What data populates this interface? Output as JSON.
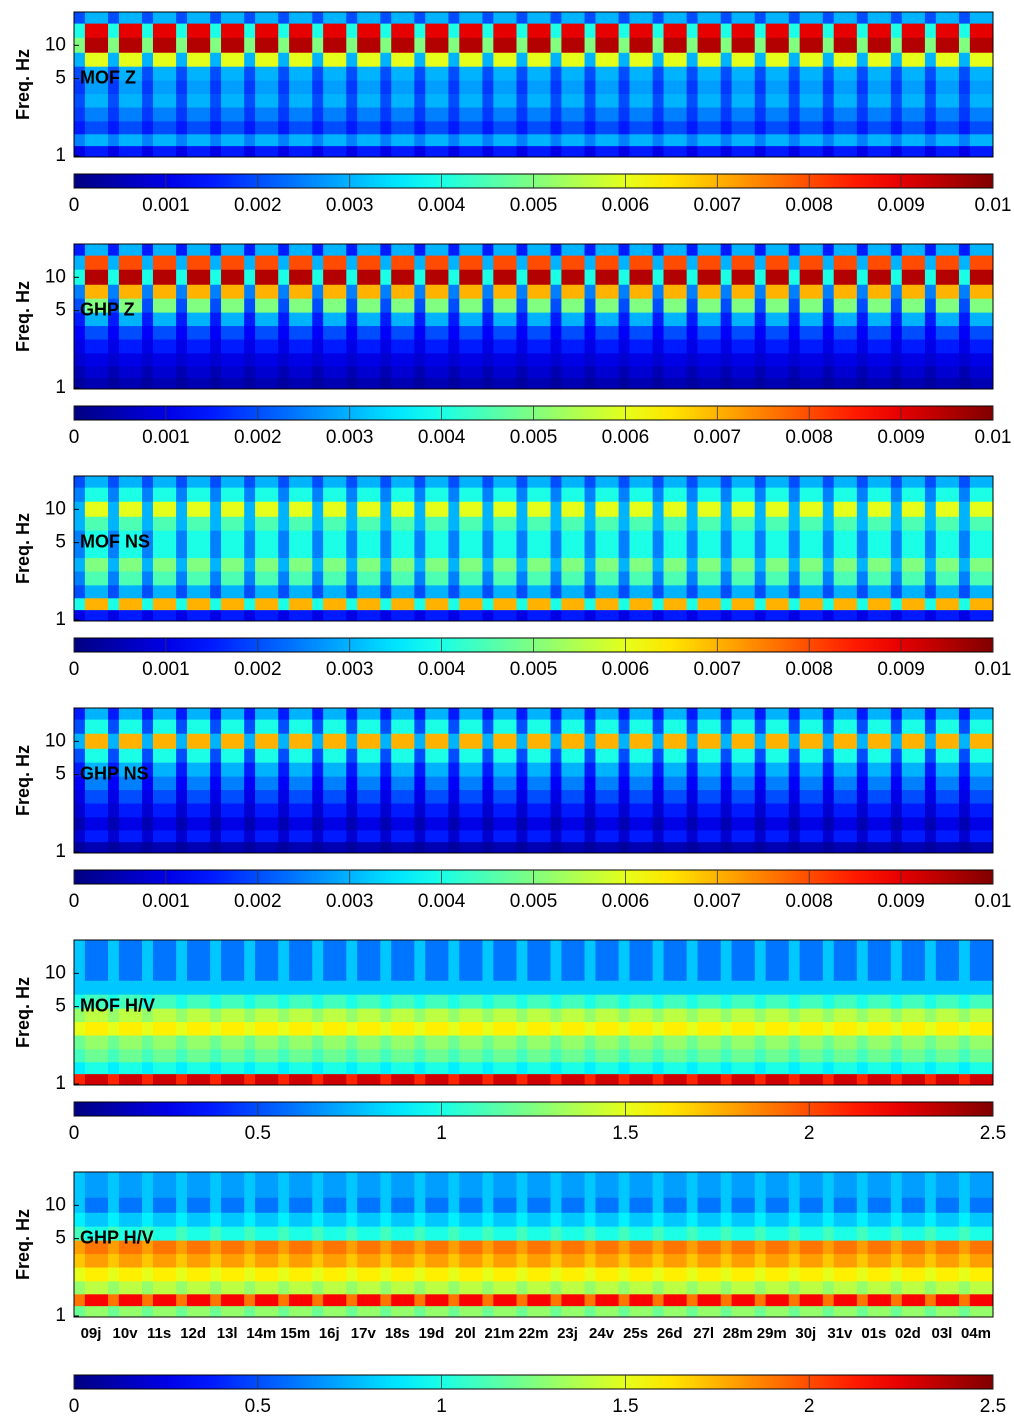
{
  "chart_data": [
    {
      "type": "heatmap",
      "label": "MOF Z",
      "ylabel": "Freq. Hz",
      "log_scale": true,
      "ylim": [
        0.98,
        20
      ],
      "yticks": [
        1,
        5,
        10
      ],
      "freqs": [
        1.1,
        1.4,
        1.8,
        2.4,
        3.2,
        4.2,
        5.6,
        7.5,
        10,
        14,
        18
      ],
      "day": [
        0.0015,
        0.003,
        0.002,
        0.0025,
        0.003,
        0.0028,
        0.003,
        0.006,
        0.0095,
        0.009,
        0.003
      ],
      "night": [
        0.001,
        0.0025,
        0.0015,
        0.0018,
        0.002,
        0.0018,
        0.002,
        0.003,
        0.005,
        0.004,
        0.002
      ],
      "clim": [
        0,
        0.01
      ],
      "cticks": [
        0,
        0.001,
        0.002,
        0.003,
        0.004,
        0.005,
        0.006,
        0.007,
        0.008,
        0.009,
        0.01
      ]
    },
    {
      "type": "heatmap",
      "label": "GHP Z",
      "ylabel": "Freq. Hz",
      "log_scale": true,
      "ylim": [
        0.98,
        20
      ],
      "yticks": [
        1,
        5,
        10
      ],
      "freqs": [
        1.1,
        1.4,
        1.8,
        2.4,
        3.2,
        4.2,
        5.6,
        7.5,
        10,
        14,
        18
      ],
      "day": [
        0.0005,
        0.0008,
        0.001,
        0.0015,
        0.002,
        0.003,
        0.005,
        0.007,
        0.0095,
        0.008,
        0.003
      ],
      "night": [
        0.0003,
        0.0005,
        0.0008,
        0.001,
        0.0012,
        0.0015,
        0.002,
        0.0025,
        0.004,
        0.003,
        0.0015
      ],
      "clim": [
        0,
        0.01
      ],
      "cticks": [
        0,
        0.001,
        0.002,
        0.003,
        0.004,
        0.005,
        0.006,
        0.007,
        0.008,
        0.009,
        0.01
      ]
    },
    {
      "type": "heatmap",
      "label": "MOF NS",
      "ylabel": "Freq. Hz",
      "log_scale": true,
      "ylim": [
        0.98,
        20
      ],
      "yticks": [
        1,
        5,
        10
      ],
      "freqs": [
        1.1,
        1.4,
        1.8,
        2.4,
        3.2,
        4.2,
        5.6,
        7.5,
        10,
        14,
        18
      ],
      "day": [
        0.0015,
        0.007,
        0.003,
        0.0045,
        0.005,
        0.004,
        0.004,
        0.0045,
        0.006,
        0.004,
        0.003
      ],
      "night": [
        0.001,
        0.004,
        0.002,
        0.0025,
        0.003,
        0.0025,
        0.0025,
        0.003,
        0.003,
        0.0025,
        0.002
      ],
      "clim": [
        0,
        0.01
      ],
      "cticks": [
        0,
        0.001,
        0.002,
        0.003,
        0.004,
        0.005,
        0.006,
        0.007,
        0.008,
        0.009,
        0.01
      ]
    },
    {
      "type": "heatmap",
      "label": "GHP NS",
      "ylabel": "Freq. Hz",
      "log_scale": true,
      "ylim": [
        0.98,
        20
      ],
      "yticks": [
        1,
        5,
        10
      ],
      "freqs": [
        1.1,
        1.4,
        1.8,
        2.4,
        3.2,
        4.2,
        5.6,
        7.5,
        10,
        14,
        18
      ],
      "day": [
        0.0005,
        0.0015,
        0.001,
        0.0015,
        0.002,
        0.0025,
        0.003,
        0.004,
        0.007,
        0.004,
        0.003
      ],
      "night": [
        0.0003,
        0.0008,
        0.0005,
        0.0008,
        0.001,
        0.0012,
        0.0015,
        0.002,
        0.003,
        0.002,
        0.0015
      ],
      "clim": [
        0,
        0.01
      ],
      "cticks": [
        0,
        0.001,
        0.002,
        0.003,
        0.004,
        0.005,
        0.006,
        0.007,
        0.008,
        0.009,
        0.01
      ]
    },
    {
      "type": "heatmap",
      "label": "MOF H/V",
      "ylabel": "Freq. Hz",
      "log_scale": true,
      "ylim": [
        0.98,
        20
      ],
      "yticks": [
        1,
        5,
        10
      ],
      "freqs": [
        1.1,
        1.4,
        1.8,
        2.4,
        3.2,
        4.2,
        5.6,
        7.5,
        10,
        14,
        18
      ],
      "day": [
        2.3,
        1.0,
        1.2,
        1.3,
        1.6,
        1.4,
        1.1,
        0.8,
        0.6,
        0.6,
        0.6
      ],
      "night": [
        2.1,
        0.9,
        1.1,
        1.2,
        1.5,
        1.3,
        1.0,
        0.8,
        0.8,
        0.8,
        0.8
      ],
      "clim": [
        0,
        2.5
      ],
      "cticks": [
        0,
        0.5,
        1,
        1.5,
        2,
        2.5
      ]
    },
    {
      "type": "heatmap",
      "label": "GHP H/V",
      "ylabel": "Freq. Hz",
      "log_scale": true,
      "ylim": [
        0.98,
        20
      ],
      "yticks": [
        1,
        5,
        10
      ],
      "freqs": [
        1.1,
        1.4,
        1.8,
        2.4,
        3.2,
        4.2,
        5.6,
        7.5,
        10,
        14,
        18
      ],
      "day": [
        1.3,
        2.2,
        1.4,
        1.6,
        1.8,
        1.9,
        1.0,
        0.8,
        0.6,
        0.7,
        0.7
      ],
      "night": [
        1.2,
        1.9,
        1.3,
        1.5,
        1.7,
        1.8,
        1.1,
        0.9,
        0.8,
        0.8,
        0.8
      ],
      "clim": [
        0,
        2.5
      ],
      "cticks": [
        0,
        0.5,
        1,
        1.5,
        2,
        2.5
      ],
      "categories": [
        "09j",
        "10v",
        "11s",
        "12d",
        "13l",
        "14m",
        "15m",
        "16j",
        "17v",
        "18s",
        "19d",
        "20l",
        "21m",
        "22m",
        "23j",
        "24v",
        "25s",
        "26d",
        "27l",
        "28m",
        "29m",
        "30j",
        "31v",
        "01s",
        "02d",
        "03l",
        "04m"
      ]
    }
  ]
}
